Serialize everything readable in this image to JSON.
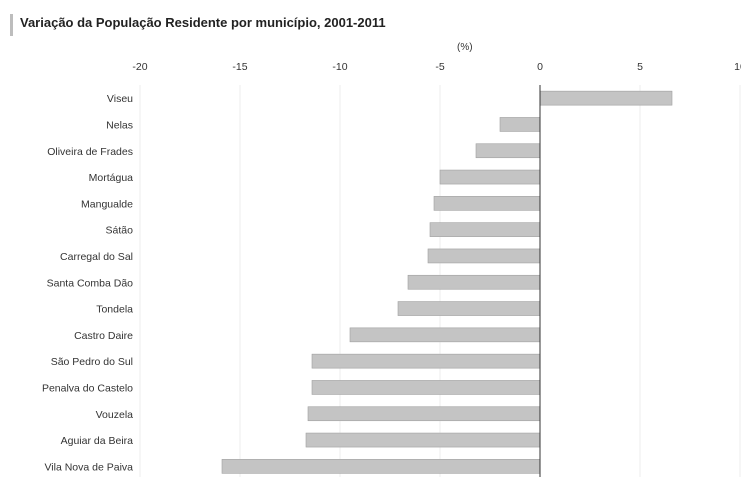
{
  "chart_data": {
    "type": "bar",
    "orientation": "horizontal",
    "title": "Variação da População Residente por município, 2001-2011",
    "unit_label": "(%)",
    "categories": [
      "Viseu",
      "Nelas",
      "Oliveira de Frades",
      "Mortágua",
      "Mangualde",
      "Sátão",
      "Carregal do Sal",
      "Santa Comba Dão",
      "Tondela",
      "Castro Daire",
      "São Pedro do Sul",
      "Penalva do Castelo",
      "Vouzela",
      "Aguiar da Beira",
      "Vila Nova de Paiva"
    ],
    "values": [
      6.6,
      -2.0,
      -3.2,
      -5.0,
      -5.3,
      -5.5,
      -5.6,
      -6.6,
      -7.1,
      -9.5,
      -11.4,
      -11.4,
      -11.6,
      -11.7,
      -15.9
    ],
    "xlim": [
      -20,
      10
    ],
    "xticks": [
      "-20",
      "-15",
      "-10",
      "-5",
      "0",
      "5",
      "10"
    ],
    "grid": true,
    "colors": {
      "bar": "#c4c4c4",
      "bar_edge": "#a0a0a0",
      "grid": "#eeeeee",
      "axis": "#333333"
    }
  }
}
